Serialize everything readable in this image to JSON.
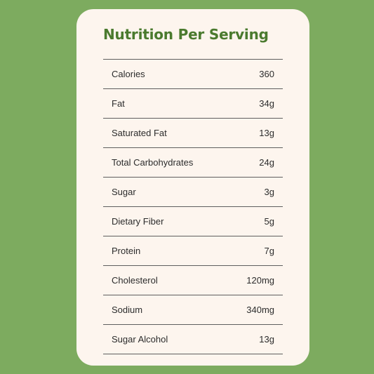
{
  "title": "Nutrition Per Serving",
  "rows": [
    {
      "label": "Calories",
      "value": "360"
    },
    {
      "label": "Fat",
      "value": "34g"
    },
    {
      "label": "Saturated Fat",
      "value": "13g"
    },
    {
      "label": "Total Carbohydrates",
      "value": "24g"
    },
    {
      "label": "Sugar",
      "value": "3g"
    },
    {
      "label": "Dietary Fiber",
      "value": "5g"
    },
    {
      "label": "Protein",
      "value": "7g"
    },
    {
      "label": "Cholesterol",
      "value": "120mg"
    },
    {
      "label": "Sodium",
      "value": "340mg"
    },
    {
      "label": "Sugar Alcohol",
      "value": "13g"
    }
  ],
  "colors": {
    "background": "#7dab5f",
    "card": "#fdf5ee",
    "title": "#4a7a2e",
    "divider": "#5e5e5e"
  }
}
